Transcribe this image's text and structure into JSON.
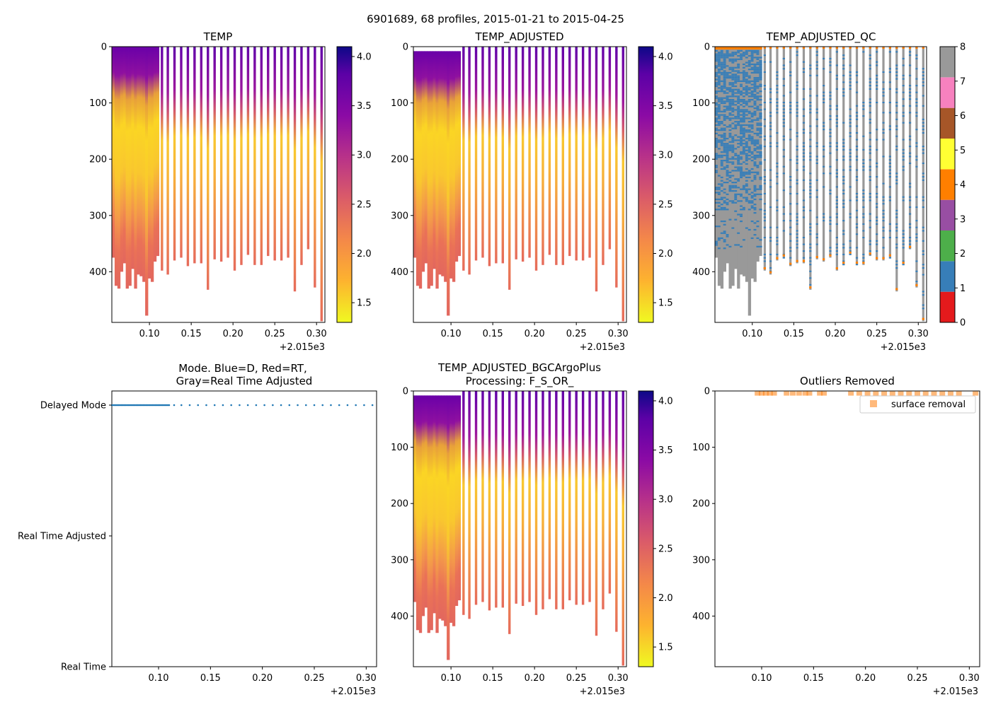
{
  "chart_data": {
    "suptitle": "6901689, 68 profiles, 2015-01-21 to 2015-04-25",
    "n_profiles": 68,
    "x_offset_label": "+2.015e3",
    "x_range": [
      0.055,
      0.31
    ],
    "x_ticks": [
      "0.10",
      "0.15",
      "0.20",
      "0.25",
      "0.30"
    ],
    "depth_range": [
      0,
      490
    ],
    "depth_ticks": [
      "0",
      "100",
      "200",
      "300",
      "400"
    ],
    "temp_colorbar": {
      "range": [
        1.3,
        4.1
      ],
      "ticks": [
        "1.5",
        "2.0",
        "2.5",
        "3.0",
        "3.5",
        "4.0"
      ],
      "colormap": "plasma_r"
    },
    "qc_colorbar": {
      "ticks": [
        "0",
        "1",
        "2",
        "3",
        "4",
        "5",
        "6",
        "7",
        "8"
      ],
      "colors": [
        "#e41a1c",
        "#377eb8",
        "#4daf4a",
        "#984ea3",
        "#ff7f00",
        "#ffff33",
        "#a65628",
        "#f781bf",
        "#999999"
      ]
    },
    "profiles_sparse_times": [
      0.115,
      0.122,
      0.13,
      0.138,
      0.146,
      0.154,
      0.162,
      0.17,
      0.178,
      0.186,
      0.194,
      0.202,
      0.21,
      0.218,
      0.226,
      0.234,
      0.242,
      0.25,
      0.258,
      0.266,
      0.274,
      0.282,
      0.29,
      0.298,
      0.306
    ],
    "profiles_sparse_max_depth": [
      398,
      405,
      380,
      375,
      390,
      385,
      385,
      432,
      378,
      382,
      375,
      398,
      388,
      370,
      388,
      388,
      372,
      380,
      380,
      375,
      435,
      388,
      360,
      428,
      488
    ],
    "profiles_dense_max_depth": [
      375,
      425,
      430,
      400,
      385,
      430,
      425,
      395,
      430,
      405,
      408,
      418,
      478,
      412,
      418,
      382,
      372
    ],
    "panels": [
      {
        "title": "TEMP",
        "type": "heatmap",
        "variable": "TEMP"
      },
      {
        "title": "TEMP_ADJUSTED",
        "type": "heatmap",
        "variable": "TEMP_ADJUSTED"
      },
      {
        "title": "TEMP_ADJUSTED_QC",
        "type": "heatmap",
        "variable": "TEMP_ADJUSTED_QC",
        "dominant_flags": [
          1,
          8
        ],
        "surface_flag": 4
      },
      {
        "title_line1": "Mode. Blue=D, Red=RT,",
        "title_line2": "Gray=Real Time Adjusted",
        "type": "scatter",
        "y_categories": [
          "Delayed Mode",
          "Real Time Adjusted",
          "Real Time"
        ],
        "all_points_category": "Delayed Mode",
        "color": "#1f77b4"
      },
      {
        "title_line1": "TEMP_ADJUSTED_BGCArgoPlus",
        "title_line2": "Processing: F_S_OR_",
        "type": "heatmap",
        "variable": "TEMP_ADJUSTED_BGCArgoPlus"
      },
      {
        "title": "Outliers Removed",
        "type": "scatter",
        "legend": "surface removal",
        "legend_position": "top-right",
        "marker_color": "#ff7f0e",
        "points_x": [
          0.096,
          0.1,
          0.104,
          0.108,
          0.112,
          0.124,
          0.13,
          0.136,
          0.142,
          0.146,
          0.156,
          0.16,
          0.186,
          0.194,
          0.202,
          0.21,
          0.218,
          0.226,
          0.234,
          0.242,
          0.25,
          0.258,
          0.266,
          0.274,
          0.282,
          0.29,
          0.306
        ],
        "points_depth": 2
      }
    ]
  }
}
